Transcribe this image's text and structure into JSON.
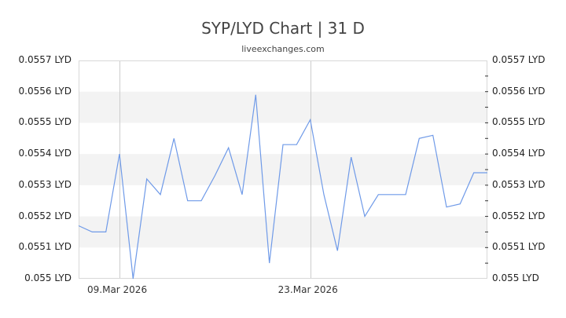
{
  "header": {
    "title": "SYP/LYD Chart | 31 D",
    "subtitle": "liveexchanges.com"
  },
  "colors": {
    "line": "#6f9ae8",
    "band": "#f3f3f3",
    "grid": "#cccccc"
  },
  "y_axis": {
    "labels": [
      "0.0557 LYD",
      "0.0556 LYD",
      "0.0555 LYD",
      "0.0554 LYD",
      "0.0553 LYD",
      "0.0552 LYD",
      "0.0551 LYD",
      "0.055 LYD"
    ]
  },
  "x_axis": {
    "labels": [
      "09.Mar 2026",
      "23.Mar 2026"
    ]
  },
  "chart_data": {
    "type": "line",
    "title": "SYP/LYD Chart | 31 D",
    "subtitle": "liveexchanges.com",
    "xlabel": "",
    "ylabel": "LYD",
    "ylim": [
      0.055,
      0.0557
    ],
    "x_tick_labels": [
      "09.Mar 2026",
      "23.Mar 2026"
    ],
    "y_tick_labels": [
      "0.055 LYD",
      "0.0551 LYD",
      "0.0552 LYD",
      "0.0553 LYD",
      "0.0554 LYD",
      "0.0555 LYD",
      "0.0556 LYD",
      "0.0557 LYD"
    ],
    "grid": "alternating horizontal bands, vertical lines at date ticks",
    "series": [
      {
        "name": "SYP/LYD",
        "values": [
          0.05517,
          0.05515,
          0.05515,
          0.0554,
          0.055,
          0.05532,
          0.05527,
          0.05545,
          0.05525,
          0.05525,
          0.05533,
          0.05542,
          0.05527,
          0.05559,
          0.05505,
          0.05543,
          0.05543,
          0.05551,
          0.05527,
          0.05509,
          0.05539,
          0.0552,
          0.05527,
          0.05527,
          0.05527,
          0.05545,
          0.05546,
          0.05523,
          0.05524,
          0.05534,
          0.05534
        ]
      }
    ]
  }
}
